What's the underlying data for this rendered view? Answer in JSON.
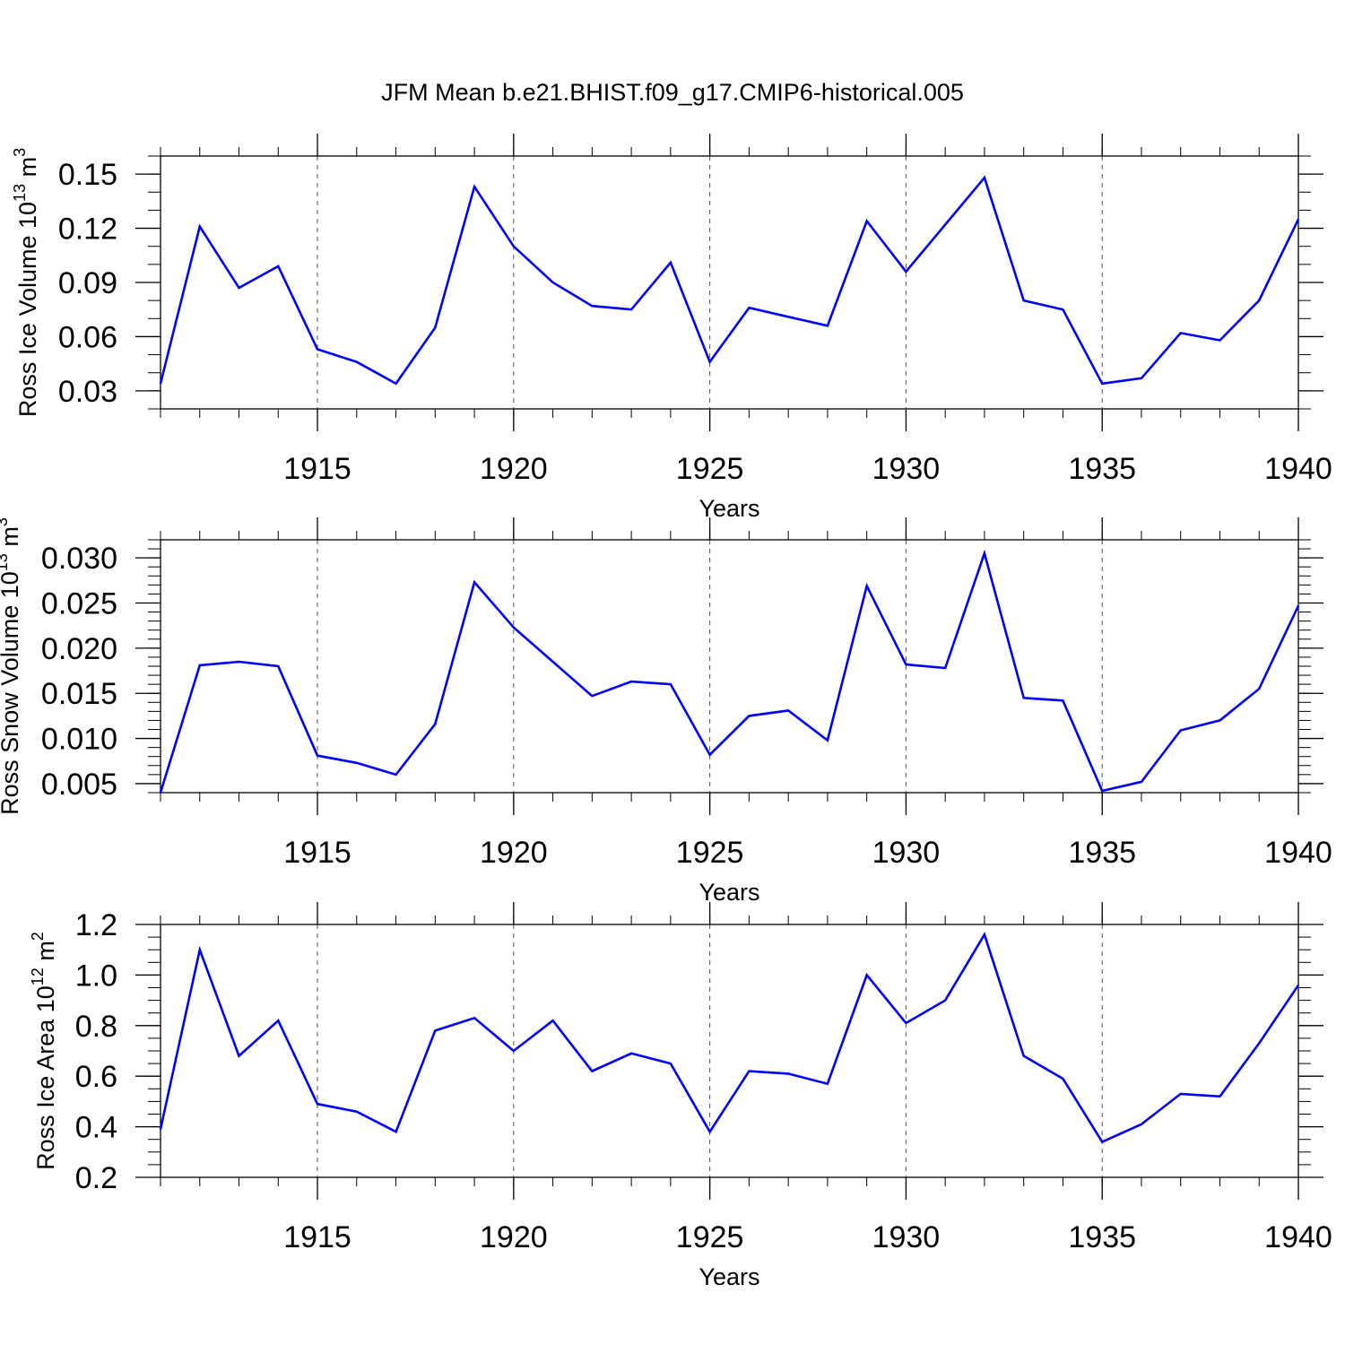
{
  "title": "JFM Mean b.e21.BHIST.f09_g17.CMIP6-historical.005",
  "line_color": "#0000ff",
  "chart_data": [
    {
      "type": "line",
      "ylabel": "Ross Ice Volume 10",
      "ylabel_exp": "13",
      "ylabel_unit": " m",
      "ylabel_unit_exp": "3",
      "xlabel": "Years",
      "xlim": [
        1911,
        1940
      ],
      "ylim": [
        0.02,
        0.16
      ],
      "xticks": [
        1915,
        1920,
        1925,
        1930,
        1935,
        1940
      ],
      "yticks": [
        0.03,
        0.06,
        0.09,
        0.12,
        0.15
      ],
      "ytick_labels": [
        "0.03",
        "0.06",
        "0.09",
        "0.12",
        "0.15"
      ],
      "yminor_step": 0.01,
      "x": [
        1911,
        1912,
        1913,
        1914,
        1915,
        1916,
        1917,
        1918,
        1919,
        1920,
        1921,
        1922,
        1923,
        1924,
        1925,
        1926,
        1927,
        1928,
        1929,
        1930,
        1931,
        1932,
        1933,
        1934,
        1935,
        1936,
        1937,
        1938,
        1939,
        1940
      ],
      "series": [
        {
          "values": [
            0.034,
            0.121,
            0.087,
            0.099,
            0.053,
            0.046,
            0.034,
            0.065,
            0.143,
            0.11,
            0.09,
            0.077,
            0.075,
            0.101,
            0.046,
            0.076,
            0.071,
            0.066,
            0.124,
            0.096,
            0.122,
            0.148,
            0.08,
            0.075,
            0.034,
            0.037,
            0.062,
            0.058,
            0.08,
            0.125
          ]
        }
      ]
    },
    {
      "type": "line",
      "ylabel": "Ross Snow Volume 10",
      "ylabel_exp": "13",
      "ylabel_unit": " m",
      "ylabel_unit_exp": "3",
      "xlabel": "Years",
      "xlim": [
        1911,
        1940
      ],
      "ylim": [
        0.004,
        0.032
      ],
      "xticks": [
        1915,
        1920,
        1925,
        1930,
        1935,
        1940
      ],
      "yticks": [
        0.005,
        0.01,
        0.015,
        0.02,
        0.025,
        0.03
      ],
      "ytick_labels": [
        "0.005",
        "0.010",
        "0.015",
        "0.020",
        "0.025",
        "0.030"
      ],
      "yminor_step": 0.001,
      "x": [
        1911,
        1912,
        1913,
        1914,
        1915,
        1916,
        1917,
        1918,
        1919,
        1920,
        1921,
        1922,
        1923,
        1924,
        1925,
        1926,
        1927,
        1928,
        1929,
        1930,
        1931,
        1932,
        1933,
        1934,
        1935,
        1936,
        1937,
        1938,
        1939,
        1940
      ],
      "series": [
        {
          "values": [
            0.004,
            0.0181,
            0.0185,
            0.018,
            0.0081,
            0.0073,
            0.006,
            0.0116,
            0.0273,
            0.0223,
            0.0185,
            0.0147,
            0.0163,
            0.016,
            0.0082,
            0.0125,
            0.0131,
            0.0098,
            0.0269,
            0.0182,
            0.0178,
            0.0305,
            0.0145,
            0.0142,
            0.0042,
            0.0052,
            0.0109,
            0.012,
            0.0155,
            0.0247
          ]
        }
      ]
    },
    {
      "type": "line",
      "ylabel": "Ross Ice Area 10",
      "ylabel_exp": "12",
      "ylabel_unit": " m",
      "ylabel_unit_exp": "2",
      "xlabel": "Years",
      "xlim": [
        1911,
        1940
      ],
      "ylim": [
        0.2,
        1.2
      ],
      "xticks": [
        1915,
        1920,
        1925,
        1930,
        1935,
        1940
      ],
      "yticks": [
        0.2,
        0.4,
        0.6,
        0.8,
        1.0,
        1.2
      ],
      "ytick_labels": [
        "0.2",
        "0.4",
        "0.6",
        "0.8",
        "1.0",
        "1.2"
      ],
      "yminor_step": 0.05,
      "x": [
        1911,
        1912,
        1913,
        1914,
        1915,
        1916,
        1917,
        1918,
        1919,
        1920,
        1921,
        1922,
        1923,
        1924,
        1925,
        1926,
        1927,
        1928,
        1929,
        1930,
        1931,
        1932,
        1933,
        1934,
        1935,
        1936,
        1937,
        1938,
        1939,
        1940
      ],
      "series": [
        {
          "values": [
            0.39,
            1.1,
            0.68,
            0.82,
            0.49,
            0.46,
            0.38,
            0.78,
            0.83,
            0.7,
            0.82,
            0.62,
            0.69,
            0.65,
            0.38,
            0.62,
            0.61,
            0.57,
            1.0,
            0.81,
            0.9,
            1.16,
            0.68,
            0.59,
            0.34,
            0.41,
            0.53,
            0.52,
            0.73,
            0.96
          ]
        }
      ]
    }
  ]
}
